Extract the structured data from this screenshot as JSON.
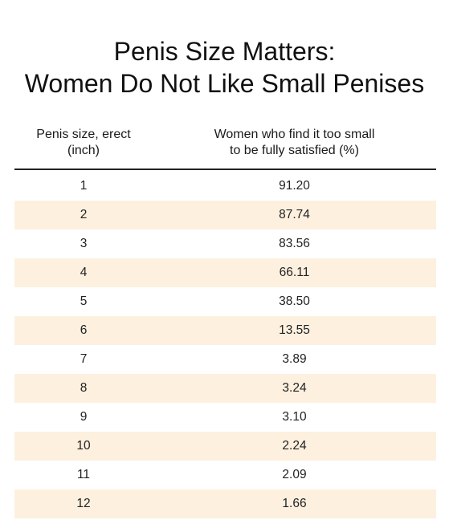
{
  "title": {
    "line1": "Penis Size Matters:",
    "line2": "Women Do Not Like Small Penises"
  },
  "table": {
    "col1_header": [
      "Penis size, erect",
      "(inch)"
    ],
    "col2_header": [
      "Women who find it too small",
      "to be fully satisfied (%)"
    ],
    "rows": [
      {
        "size": "1",
        "percent": "91.20"
      },
      {
        "size": "2",
        "percent": "87.74"
      },
      {
        "size": "3",
        "percent": "83.56"
      },
      {
        "size": "4",
        "percent": "66.11"
      },
      {
        "size": "5",
        "percent": "38.50"
      },
      {
        "size": "6",
        "percent": "13.55"
      },
      {
        "size": "7",
        "percent": "3.89"
      },
      {
        "size": "8",
        "percent": "3.24"
      },
      {
        "size": "9",
        "percent": "3.10"
      },
      {
        "size": "10",
        "percent": "2.24"
      },
      {
        "size": "11",
        "percent": "2.09"
      },
      {
        "size": "12",
        "percent": "1.66"
      }
    ],
    "stripe_color": "#fdf0df"
  }
}
